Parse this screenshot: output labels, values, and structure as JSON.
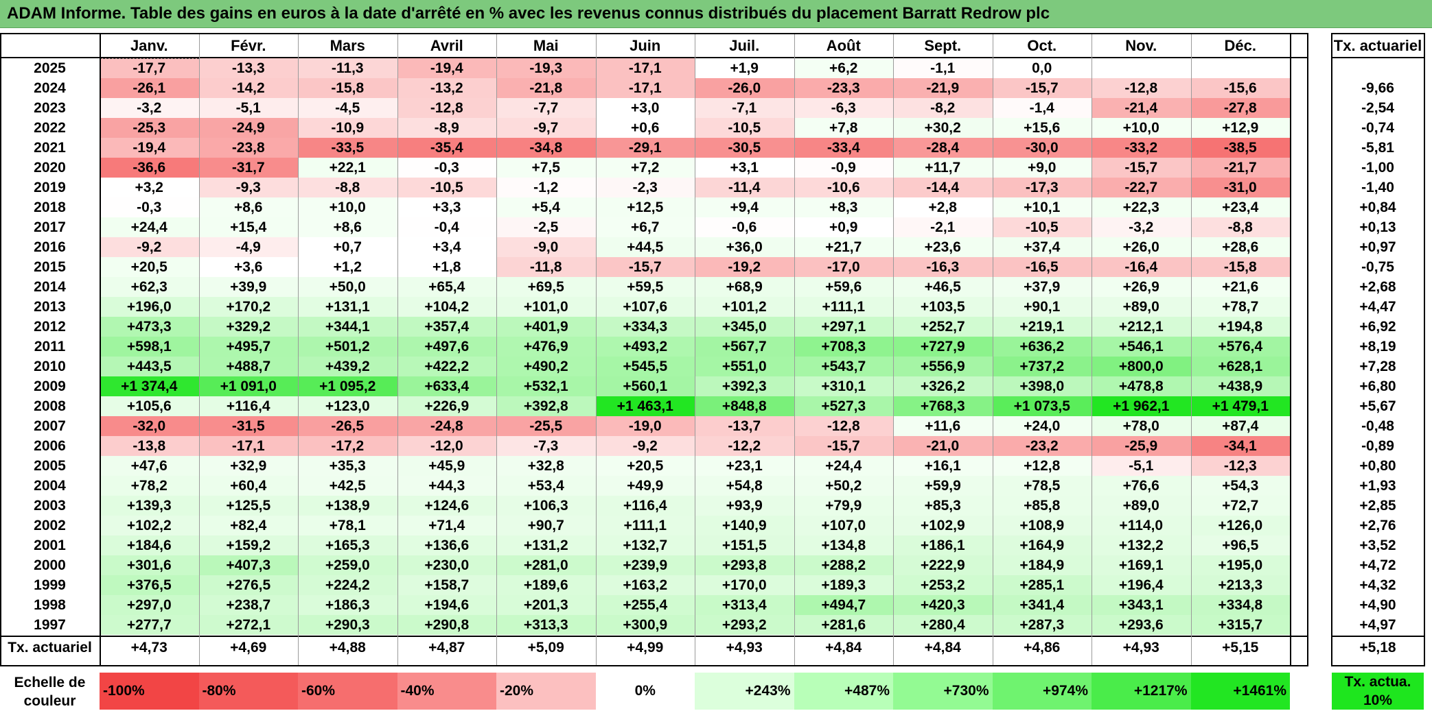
{
  "title": "ADAM Informe. Table des gains en euros à la date d'arrêté en % avec les revenus connus distribués du placement Barratt Redrow plc",
  "months": [
    "Janv.",
    "Févr.",
    "Mars",
    "Avril",
    "Mai",
    "Juin",
    "Juil.",
    "Août",
    "Sept.",
    "Oct.",
    "Nov.",
    "Déc."
  ],
  "rate_header": "Tx. actuariel",
  "rows": [
    {
      "year": "2025",
      "values": [
        "-17,7",
        "-13,3",
        "-11,3",
        "-19,4",
        "-19,3",
        "-17,1",
        "+1,9",
        "+6,2",
        "-1,1",
        "0,0",
        "",
        ""
      ],
      "rate": ""
    },
    {
      "year": "2024",
      "values": [
        "-26,1",
        "-14,2",
        "-15,8",
        "-13,2",
        "-21,8",
        "-17,1",
        "-26,0",
        "-23,3",
        "-21,9",
        "-15,7",
        "-12,8",
        "-15,6"
      ],
      "rate": "-9,66"
    },
    {
      "year": "2023",
      "values": [
        "-3,2",
        "-5,1",
        "-4,5",
        "-12,8",
        "-7,7",
        "+3,0",
        "-7,1",
        "-6,3",
        "-8,2",
        "-1,4",
        "-21,4",
        "-27,8"
      ],
      "rate": "-2,54"
    },
    {
      "year": "2022",
      "values": [
        "-25,3",
        "-24,9",
        "-10,9",
        "-8,9",
        "-9,7",
        "+0,6",
        "-10,5",
        "+7,8",
        "+30,2",
        "+15,6",
        "+10,0",
        "+12,9"
      ],
      "rate": "-0,74"
    },
    {
      "year": "2021",
      "values": [
        "-19,4",
        "-23,8",
        "-33,5",
        "-35,4",
        "-34,8",
        "-29,1",
        "-30,5",
        "-33,4",
        "-28,4",
        "-30,0",
        "-33,2",
        "-38,5"
      ],
      "rate": "-5,81"
    },
    {
      "year": "2020",
      "values": [
        "-36,6",
        "-31,7",
        "+22,1",
        "-0,3",
        "+7,5",
        "+7,2",
        "+3,1",
        "-0,9",
        "+11,7",
        "+9,0",
        "-15,7",
        "-21,7"
      ],
      "rate": "-1,00"
    },
    {
      "year": "2019",
      "values": [
        "+3,2",
        "-9,3",
        "-8,8",
        "-10,5",
        "-1,2",
        "-2,3",
        "-11,4",
        "-10,6",
        "-14,4",
        "-17,3",
        "-22,7",
        "-31,0"
      ],
      "rate": "-1,40"
    },
    {
      "year": "2018",
      "values": [
        "-0,3",
        "+8,6",
        "+10,0",
        "+3,3",
        "+5,4",
        "+12,5",
        "+9,4",
        "+8,3",
        "+2,8",
        "+10,1",
        "+22,3",
        "+23,4"
      ],
      "rate": "+0,84"
    },
    {
      "year": "2017",
      "values": [
        "+24,4",
        "+15,4",
        "+8,6",
        "-0,4",
        "-2,5",
        "+6,7",
        "-0,6",
        "+0,9",
        "-2,1",
        "-10,5",
        "-3,2",
        "-8,8"
      ],
      "rate": "+0,13"
    },
    {
      "year": "2016",
      "values": [
        "-9,2",
        "-4,9",
        "+0,7",
        "+3,4",
        "-9,0",
        "+44,5",
        "+36,0",
        "+21,7",
        "+23,6",
        "+37,4",
        "+26,0",
        "+28,6"
      ],
      "rate": "+0,97"
    },
    {
      "year": "2015",
      "values": [
        "+20,5",
        "+3,6",
        "+1,2",
        "+1,8",
        "-11,8",
        "-15,7",
        "-19,2",
        "-17,0",
        "-16,3",
        "-16,5",
        "-16,4",
        "-15,8"
      ],
      "rate": "-0,75"
    },
    {
      "year": "2014",
      "values": [
        "+62,3",
        "+39,9",
        "+50,0",
        "+65,4",
        "+69,5",
        "+59,5",
        "+68,9",
        "+59,6",
        "+46,5",
        "+37,9",
        "+26,9",
        "+21,6"
      ],
      "rate": "+2,68"
    },
    {
      "year": "2013",
      "values": [
        "+196,0",
        "+170,2",
        "+131,1",
        "+104,2",
        "+101,0",
        "+107,6",
        "+101,2",
        "+111,1",
        "+103,5",
        "+90,1",
        "+89,0",
        "+78,7"
      ],
      "rate": "+4,47"
    },
    {
      "year": "2012",
      "values": [
        "+473,3",
        "+329,2",
        "+344,1",
        "+357,4",
        "+401,9",
        "+334,3",
        "+345,0",
        "+297,1",
        "+252,7",
        "+219,1",
        "+212,1",
        "+194,8"
      ],
      "rate": "+6,92"
    },
    {
      "year": "2011",
      "values": [
        "+598,1",
        "+495,7",
        "+501,2",
        "+497,6",
        "+476,9",
        "+493,2",
        "+567,7",
        "+708,3",
        "+727,9",
        "+636,2",
        "+546,1",
        "+576,4"
      ],
      "rate": "+8,19"
    },
    {
      "year": "2010",
      "values": [
        "+443,5",
        "+488,7",
        "+439,2",
        "+422,2",
        "+490,2",
        "+545,5",
        "+551,0",
        "+543,7",
        "+556,9",
        "+737,2",
        "+800,0",
        "+628,1"
      ],
      "rate": "+7,28"
    },
    {
      "year": "2009",
      "values": [
        "+1 374,4",
        "+1 091,0",
        "+1 095,2",
        "+633,4",
        "+532,1",
        "+560,1",
        "+392,3",
        "+310,1",
        "+326,2",
        "+398,0",
        "+478,8",
        "+438,9"
      ],
      "rate": "+6,80"
    },
    {
      "year": "2008",
      "values": [
        "+105,6",
        "+116,4",
        "+123,0",
        "+226,9",
        "+392,8",
        "+1 463,1",
        "+848,8",
        "+527,3",
        "+768,3",
        "+1 073,5",
        "+1 962,1",
        "+1 479,1"
      ],
      "rate": "+5,67"
    },
    {
      "year": "2007",
      "values": [
        "-32,0",
        "-31,5",
        "-26,5",
        "-24,8",
        "-25,5",
        "-19,0",
        "-13,7",
        "-12,8",
        "+11,6",
        "+24,0",
        "+78,0",
        "+87,4"
      ],
      "rate": "-0,48"
    },
    {
      "year": "2006",
      "values": [
        "-13,8",
        "-17,1",
        "-17,2",
        "-12,0",
        "-7,3",
        "-9,2",
        "-12,2",
        "-15,7",
        "-21,0",
        "-23,2",
        "-25,9",
        "-34,1"
      ],
      "rate": "-0,89"
    },
    {
      "year": "2005",
      "values": [
        "+47,6",
        "+32,9",
        "+35,3",
        "+45,9",
        "+32,8",
        "+20,5",
        "+23,1",
        "+24,4",
        "+16,1",
        "+12,8",
        "-5,1",
        "-12,3"
      ],
      "rate": "+0,80"
    },
    {
      "year": "2004",
      "values": [
        "+78,2",
        "+60,4",
        "+42,5",
        "+44,3",
        "+53,4",
        "+49,9",
        "+54,8",
        "+50,2",
        "+59,9",
        "+78,5",
        "+76,6",
        "+54,3"
      ],
      "rate": "+1,93"
    },
    {
      "year": "2003",
      "values": [
        "+139,3",
        "+125,5",
        "+138,9",
        "+124,6",
        "+106,3",
        "+116,4",
        "+93,9",
        "+79,9",
        "+85,3",
        "+85,8",
        "+89,0",
        "+72,7"
      ],
      "rate": "+2,85"
    },
    {
      "year": "2002",
      "values": [
        "+102,2",
        "+82,4",
        "+78,1",
        "+71,4",
        "+90,7",
        "+111,1",
        "+140,9",
        "+107,0",
        "+102,9",
        "+108,9",
        "+114,0",
        "+126,0"
      ],
      "rate": "+2,76"
    },
    {
      "year": "2001",
      "values": [
        "+184,6",
        "+159,2",
        "+165,3",
        "+136,6",
        "+131,2",
        "+132,7",
        "+151,5",
        "+134,8",
        "+186,1",
        "+164,9",
        "+132,2",
        "+96,5"
      ],
      "rate": "+3,52"
    },
    {
      "year": "2000",
      "values": [
        "+301,6",
        "+407,3",
        "+259,0",
        "+230,0",
        "+281,0",
        "+239,9",
        "+293,8",
        "+288,2",
        "+222,9",
        "+184,9",
        "+169,1",
        "+195,0"
      ],
      "rate": "+4,72"
    },
    {
      "year": "1999",
      "values": [
        "+376,5",
        "+276,5",
        "+224,2",
        "+158,7",
        "+189,6",
        "+163,2",
        "+170,0",
        "+189,3",
        "+253,2",
        "+285,1",
        "+196,4",
        "+213,3"
      ],
      "rate": "+4,32"
    },
    {
      "year": "1998",
      "values": [
        "+297,0",
        "+238,7",
        "+186,3",
        "+194,6",
        "+201,3",
        "+255,4",
        "+313,4",
        "+494,7",
        "+420,3",
        "+341,4",
        "+343,1",
        "+334,8"
      ],
      "rate": "+4,90"
    },
    {
      "year": "1997",
      "values": [
        "+277,7",
        "+272,1",
        "+290,3",
        "+290,8",
        "+313,3",
        "+300,9",
        "+293,2",
        "+281,6",
        "+280,4",
        "+287,3",
        "+293,6",
        "+315,7"
      ],
      "rate": "+4,97"
    }
  ],
  "summary": {
    "label": "Tx. actuariel",
    "values": [
      "+4,73",
      "+4,69",
      "+4,88",
      "+4,87",
      "+5,09",
      "+4,99",
      "+4,93",
      "+4,84",
      "+4,84",
      "+4,86",
      "+4,93",
      "+5,15"
    ],
    "rate": "+5,18"
  },
  "scale": {
    "label": "Echelle de couleur",
    "items": [
      {
        "text": "-100%",
        "color": "#f24545",
        "align": "left"
      },
      {
        "text": "-80%",
        "color": "#f45a5a",
        "align": "left"
      },
      {
        "text": "-60%",
        "color": "#f66e6e",
        "align": "left"
      },
      {
        "text": "-40%",
        "color": "#f98c8c",
        "align": "left"
      },
      {
        "text": "-20%",
        "color": "#fcc0c0",
        "align": "left"
      },
      {
        "text": "0%",
        "color": "#ffffff",
        "align": "center"
      },
      {
        "text": "+243%",
        "color": "#dcffdc",
        "align": "right"
      },
      {
        "text": "+487%",
        "color": "#b8ffb8",
        "align": "right"
      },
      {
        "text": "+730%",
        "color": "#93fa93",
        "align": "right"
      },
      {
        "text": "+974%",
        "color": "#6ff36f",
        "align": "right"
      },
      {
        "text": "+1217%",
        "color": "#4aec4a",
        "align": "right"
      },
      {
        "text": "+1461%",
        "color": "#22e622",
        "align": "right"
      }
    ],
    "target_label": "Tx. actua. 10%",
    "target_color": "#1ee61e"
  }
}
